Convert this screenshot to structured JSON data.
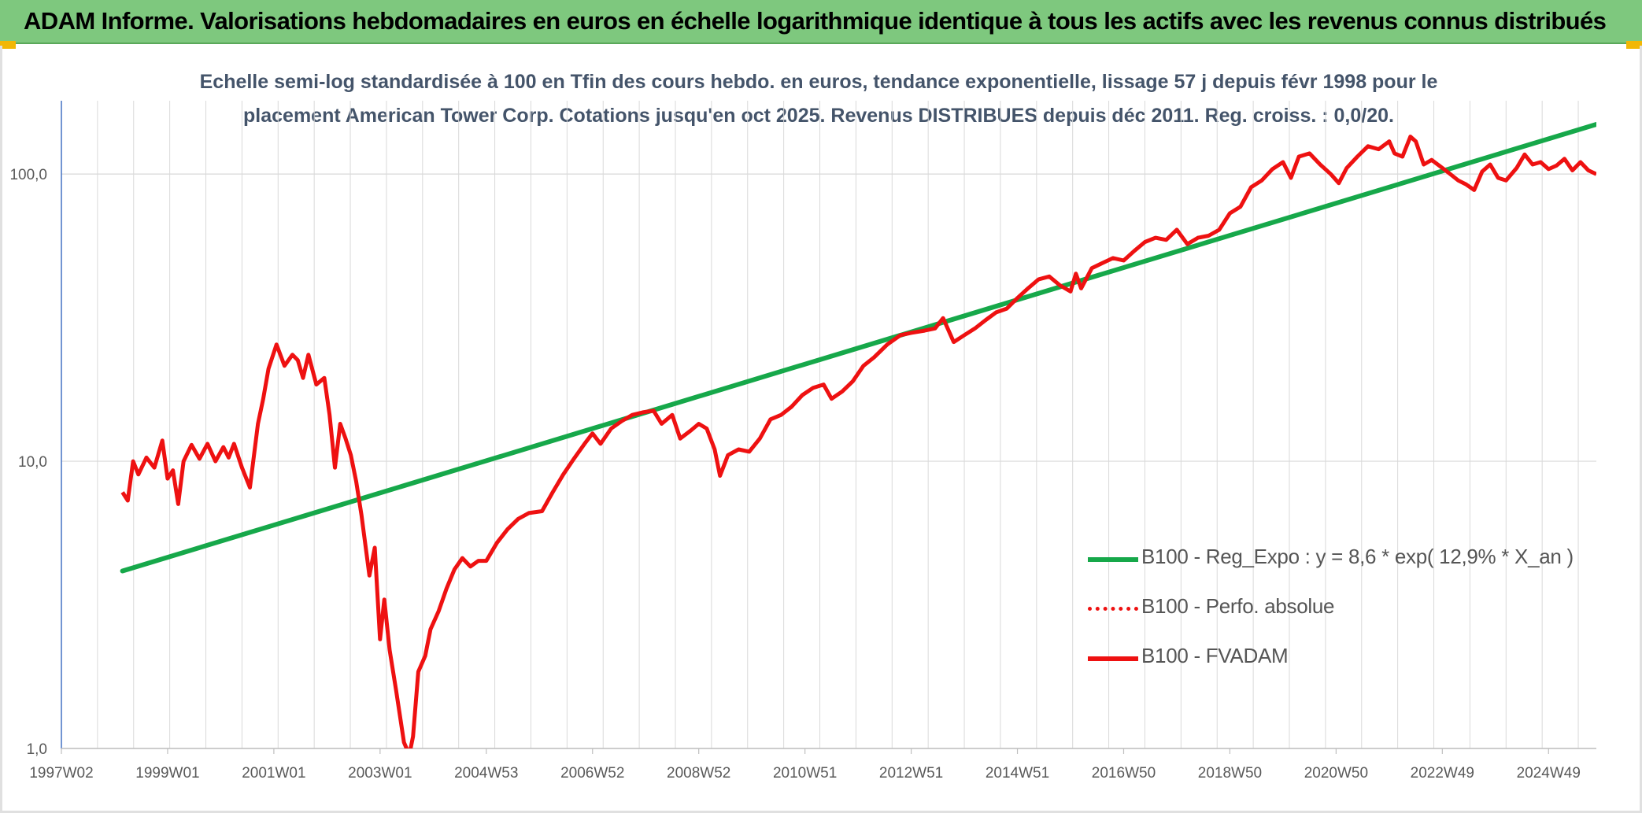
{
  "header": {
    "title": "ADAM Informe. Valorisations hebdomadaires en euros en échelle logarithmique identique à tous les actifs avec les revenus connus distribués"
  },
  "colors": {
    "header_bg": "#7ec87e",
    "regression": "#16a84a",
    "fvadam": "#ee1111",
    "perfo": "#ee1111",
    "subtitle": "#44546a",
    "grid": "#d9d9d9"
  },
  "chart_data": {
    "type": "line",
    "title_line1": "Echelle semi-log standardisée à 100 en Tfin des cours hebdo. en euros, tendance exponentielle, lissage 57 j depuis févr 1998 pour le",
    "title_line2": "placement American Tower Corp. Cotations jusqu'en oct 2025. Revenus DISTRIBUES depuis déc 2011. Reg. croiss. : 0,0/20.",
    "y_scale": "log",
    "ylim": [
      1,
      180
    ],
    "y_ticks": [
      {
        "value": 1,
        "label": "1,0"
      },
      {
        "value": 10,
        "label": "10,0"
      },
      {
        "value": 100,
        "label": "100,0"
      }
    ],
    "x_range": [
      1997.0,
      2025.9
    ],
    "x_ticks": [
      {
        "value": 1997.0,
        "label": "1997W02"
      },
      {
        "value": 1999.0,
        "label": "1999W01"
      },
      {
        "value": 2001.0,
        "label": "2001W01"
      },
      {
        "value": 2003.0,
        "label": "2003W01"
      },
      {
        "value": 2005.0,
        "label": "2004W53"
      },
      {
        "value": 2007.0,
        "label": "2006W52"
      },
      {
        "value": 2009.0,
        "label": "2008W52"
      },
      {
        "value": 2011.0,
        "label": "2010W51"
      },
      {
        "value": 2013.0,
        "label": "2012W51"
      },
      {
        "value": 2015.0,
        "label": "2014W51"
      },
      {
        "value": 2017.0,
        "label": "2016W50"
      },
      {
        "value": 2019.0,
        "label": "2018W50"
      },
      {
        "value": 2021.0,
        "label": "2020W50"
      },
      {
        "value": 2023.0,
        "label": "2022W49"
      },
      {
        "value": 2025.0,
        "label": "2024W49"
      }
    ],
    "legend_position": "right",
    "series": [
      {
        "name": "B100 - Reg_Expo : y = 8,6 * exp( 12,9% *  X_an )",
        "style": "solid-green",
        "points": [
          [
            1998.15,
            4.15
          ],
          [
            2025.9,
            149
          ]
        ]
      },
      {
        "name": "B100 - Perfo. absolue",
        "style": "dotted-red",
        "points": []
      },
      {
        "name": "B100 - FVADAM",
        "style": "solid-red",
        "points": [
          [
            1998.15,
            7.8
          ],
          [
            1998.25,
            7.3
          ],
          [
            1998.35,
            10.0
          ],
          [
            1998.45,
            9.0
          ],
          [
            1998.6,
            10.3
          ],
          [
            1998.75,
            9.5
          ],
          [
            1998.9,
            11.8
          ],
          [
            1999.0,
            8.7
          ],
          [
            1999.1,
            9.3
          ],
          [
            1999.2,
            7.1
          ],
          [
            1999.3,
            10.0
          ],
          [
            1999.45,
            11.4
          ],
          [
            1999.6,
            10.2
          ],
          [
            1999.75,
            11.5
          ],
          [
            1999.9,
            10.0
          ],
          [
            2000.05,
            11.2
          ],
          [
            2000.15,
            10.3
          ],
          [
            2000.25,
            11.5
          ],
          [
            2000.4,
            9.5
          ],
          [
            2000.55,
            8.1
          ],
          [
            2000.7,
            13.5
          ],
          [
            2000.8,
            16.5
          ],
          [
            2000.9,
            21.0
          ],
          [
            2001.05,
            25.5
          ],
          [
            2001.2,
            21.5
          ],
          [
            2001.35,
            23.5
          ],
          [
            2001.45,
            22.5
          ],
          [
            2001.55,
            19.5
          ],
          [
            2001.65,
            23.5
          ],
          [
            2001.8,
            18.5
          ],
          [
            2001.95,
            19.5
          ],
          [
            2002.05,
            14.5
          ],
          [
            2002.15,
            9.5
          ],
          [
            2002.25,
            13.5
          ],
          [
            2002.35,
            12.0
          ],
          [
            2002.45,
            10.5
          ],
          [
            2002.55,
            8.5
          ],
          [
            2002.65,
            6.5
          ],
          [
            2002.8,
            4.0
          ],
          [
            2002.9,
            5.0
          ],
          [
            2003.0,
            2.4
          ],
          [
            2003.08,
            3.3
          ],
          [
            2003.18,
            2.2
          ],
          [
            2003.3,
            1.6
          ],
          [
            2003.45,
            1.05
          ],
          [
            2003.55,
            0.95
          ],
          [
            2003.62,
            1.1
          ],
          [
            2003.72,
            1.85
          ],
          [
            2003.85,
            2.1
          ],
          [
            2003.95,
            2.6
          ],
          [
            2004.1,
            3.0
          ],
          [
            2004.25,
            3.6
          ],
          [
            2004.4,
            4.2
          ],
          [
            2004.55,
            4.6
          ],
          [
            2004.7,
            4.3
          ],
          [
            2004.85,
            4.5
          ],
          [
            2005.0,
            4.5
          ],
          [
            2005.2,
            5.2
          ],
          [
            2005.4,
            5.8
          ],
          [
            2005.6,
            6.3
          ],
          [
            2005.8,
            6.6
          ],
          [
            2006.05,
            6.7
          ],
          [
            2006.25,
            7.8
          ],
          [
            2006.45,
            9.0
          ],
          [
            2006.65,
            10.2
          ],
          [
            2006.85,
            11.5
          ],
          [
            2007.0,
            12.5
          ],
          [
            2007.15,
            11.5
          ],
          [
            2007.35,
            13.0
          ],
          [
            2007.55,
            13.8
          ],
          [
            2007.75,
            14.5
          ],
          [
            2007.95,
            14.8
          ],
          [
            2008.15,
            15.0
          ],
          [
            2008.3,
            13.5
          ],
          [
            2008.5,
            14.5
          ],
          [
            2008.65,
            12.0
          ],
          [
            2008.85,
            12.8
          ],
          [
            2009.0,
            13.5
          ],
          [
            2009.15,
            13.0
          ],
          [
            2009.3,
            11.0
          ],
          [
            2009.4,
            8.9
          ],
          [
            2009.55,
            10.5
          ],
          [
            2009.75,
            11.0
          ],
          [
            2009.95,
            10.8
          ],
          [
            2010.15,
            12.0
          ],
          [
            2010.35,
            14.0
          ],
          [
            2010.55,
            14.5
          ],
          [
            2010.75,
            15.5
          ],
          [
            2010.95,
            17.0
          ],
          [
            2011.15,
            18.0
          ],
          [
            2011.35,
            18.5
          ],
          [
            2011.5,
            16.5
          ],
          [
            2011.7,
            17.5
          ],
          [
            2011.9,
            19.0
          ],
          [
            2012.1,
            21.5
          ],
          [
            2012.3,
            23.0
          ],
          [
            2012.55,
            25.5
          ],
          [
            2012.8,
            27.5
          ],
          [
            2013.0,
            28.0
          ],
          [
            2013.25,
            28.5
          ],
          [
            2013.45,
            29.0
          ],
          [
            2013.6,
            31.5
          ],
          [
            2013.8,
            26.0
          ],
          [
            2014.0,
            27.5
          ],
          [
            2014.2,
            29.0
          ],
          [
            2014.4,
            31.0
          ],
          [
            2014.6,
            33.0
          ],
          [
            2014.8,
            34.0
          ],
          [
            2015.0,
            37.0
          ],
          [
            2015.2,
            40.0
          ],
          [
            2015.4,
            43.0
          ],
          [
            2015.6,
            44.0
          ],
          [
            2015.8,
            41.0
          ],
          [
            2016.0,
            39.0
          ],
          [
            2016.1,
            45.0
          ],
          [
            2016.2,
            40.0
          ],
          [
            2016.4,
            47.0
          ],
          [
            2016.6,
            49.0
          ],
          [
            2016.8,
            51.0
          ],
          [
            2017.0,
            50.0
          ],
          [
            2017.2,
            54.0
          ],
          [
            2017.4,
            58.0
          ],
          [
            2017.6,
            60.0
          ],
          [
            2017.8,
            59.0
          ],
          [
            2018.0,
            64.0
          ],
          [
            2018.2,
            57.0
          ],
          [
            2018.4,
            60.0
          ],
          [
            2018.6,
            61.0
          ],
          [
            2018.8,
            64.0
          ],
          [
            2019.0,
            73.0
          ],
          [
            2019.2,
            77.0
          ],
          [
            2019.4,
            90.0
          ],
          [
            2019.6,
            95.0
          ],
          [
            2019.8,
            104.0
          ],
          [
            2020.0,
            110.0
          ],
          [
            2020.15,
            97.0
          ],
          [
            2020.3,
            115.0
          ],
          [
            2020.5,
            118.0
          ],
          [
            2020.7,
            108.0
          ],
          [
            2020.9,
            100.0
          ],
          [
            2021.05,
            93.0
          ],
          [
            2021.2,
            105.0
          ],
          [
            2021.4,
            115.0
          ],
          [
            2021.6,
            125.0
          ],
          [
            2021.8,
            122.0
          ],
          [
            2022.0,
            130.0
          ],
          [
            2022.1,
            118.0
          ],
          [
            2022.25,
            115.0
          ],
          [
            2022.4,
            135.0
          ],
          [
            2022.5,
            130.0
          ],
          [
            2022.65,
            108.0
          ],
          [
            2022.8,
            112.0
          ],
          [
            2023.0,
            105.0
          ],
          [
            2023.15,
            100.0
          ],
          [
            2023.3,
            95.0
          ],
          [
            2023.45,
            92.0
          ],
          [
            2023.6,
            88.0
          ],
          [
            2023.75,
            102.0
          ],
          [
            2023.9,
            108.0
          ],
          [
            2024.05,
            97.0
          ],
          [
            2024.2,
            95.0
          ],
          [
            2024.4,
            105.0
          ],
          [
            2024.55,
            117.0
          ],
          [
            2024.7,
            108.0
          ],
          [
            2024.85,
            110.0
          ],
          [
            2025.0,
            104.0
          ],
          [
            2025.15,
            107.0
          ],
          [
            2025.3,
            113.0
          ],
          [
            2025.45,
            103.0
          ],
          [
            2025.6,
            110.0
          ],
          [
            2025.75,
            103.0
          ],
          [
            2025.9,
            100.0
          ]
        ]
      }
    ]
  }
}
